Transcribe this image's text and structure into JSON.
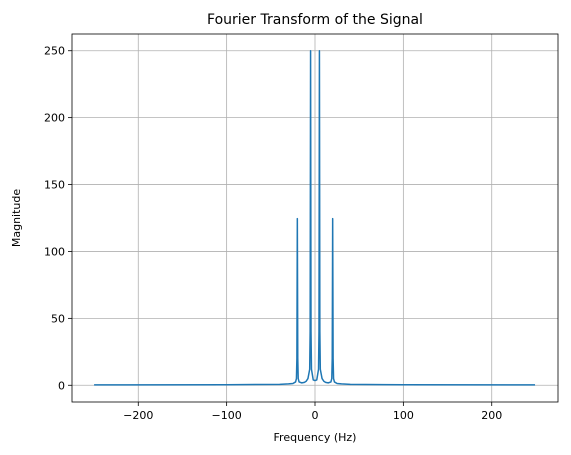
{
  "chart_data": {
    "type": "line",
    "title": "Fourier Transform of the Signal",
    "xlabel": "Frequency (Hz)",
    "ylabel": "Magnitude",
    "xlim": [
      -275,
      275
    ],
    "ylim": [
      -12.5,
      262.5
    ],
    "x_ticks": [
      -200,
      -100,
      0,
      100,
      200
    ],
    "x_tick_labels": [
      "−200",
      "−100",
      "0",
      "100",
      "200"
    ],
    "y_ticks": [
      0,
      50,
      100,
      150,
      200,
      250
    ],
    "y_tick_labels": [
      "0",
      "50",
      "100",
      "150",
      "200",
      "250"
    ],
    "grid": true,
    "legend": "none",
    "series": [
      {
        "color": "#1f77b4",
        "x": [
          -250,
          -100,
          -40,
          -30,
          -25,
          -22,
          -21,
          -20.5,
          -20,
          -19.5,
          -19,
          -18,
          -15,
          -12,
          -10,
          -8,
          -6,
          -5.5,
          -5,
          -4.5,
          -4,
          -2,
          0,
          2,
          4,
          4.5,
          5,
          5.5,
          6,
          8,
          10,
          12,
          15,
          18,
          19,
          19.5,
          20,
          20.5,
          21,
          22,
          25,
          30,
          40,
          100,
          249
        ],
        "y": [
          0.3,
          0.4,
          0.7,
          1.0,
          1.3,
          2.5,
          5,
          20,
          124.5,
          20,
          5,
          2.5,
          1.8,
          2.2,
          3,
          5,
          12,
          40,
          250,
          40,
          12,
          4,
          3.5,
          4,
          12,
          40,
          250,
          40,
          12,
          5,
          3,
          2.2,
          1.8,
          2.5,
          5,
          20,
          124.5,
          20,
          5,
          2.5,
          1.3,
          1.0,
          0.7,
          0.4,
          0.3
        ]
      }
    ]
  }
}
